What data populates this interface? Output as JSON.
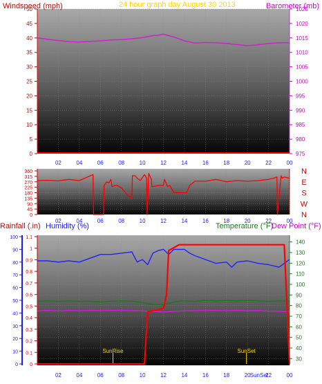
{
  "chart_data": [
    {
      "type": "line",
      "panel": "windspeed-barometer",
      "title": "24 hour graph day   August 30 2013",
      "left_axis_label": "Windspeed (mph)",
      "right_axis_label": "Barometer (mb)",
      "x_ticks": [
        "02",
        "04",
        "06",
        "08",
        "10",
        "12",
        "14",
        "16",
        "18",
        "20",
        "22",
        "00"
      ],
      "left_ticks": [
        "0",
        "5",
        "10",
        "15",
        "20",
        "25",
        "30",
        "35",
        "40",
        "45",
        "50"
      ],
      "right_ticks": [
        "975",
        "980",
        "985",
        "990",
        "995",
        "1000",
        "1005",
        "1010",
        "1015",
        "1020",
        "1025"
      ],
      "xlim": [
        0,
        24
      ],
      "left_ylim": [
        0,
        50
      ],
      "right_ylim": [
        975,
        1025
      ],
      "colors": {
        "windspeed": "#ff0000",
        "barometer": "#d020d0",
        "title": "#ffd400"
      },
      "series": [
        {
          "axis": "left",
          "x": [
            0,
            24
          ],
          "values": [
            0.3,
            0.3
          ]
        },
        {
          "axis": "right",
          "x": [
            0,
            1,
            2,
            3,
            4,
            5,
            6,
            7,
            8,
            9,
            10,
            11,
            11.5,
            12,
            12.5,
            13,
            14,
            15,
            16,
            17,
            18,
            19,
            20,
            21,
            22,
            23,
            24
          ],
          "values": [
            1015.0,
            1014.5,
            1014.1,
            1013.7,
            1013.6,
            1013.8,
            1014.0,
            1014.3,
            1014.4,
            1014.7,
            1015.1,
            1015.8,
            1015.9,
            1016.3,
            1015.8,
            1015.3,
            1014.0,
            1013.2,
            1013.4,
            1013.3,
            1013.1,
            1012.7,
            1012.3,
            1012.6,
            1013.1,
            1013.3,
            1013.3
          ]
        }
      ]
    },
    {
      "type": "line",
      "panel": "wind-direction",
      "right_axis_label": "N W S E N",
      "x_ticks": [
        "02",
        "04",
        "06",
        "08",
        "10",
        "12",
        "14",
        "16",
        "18",
        "20",
        "22",
        "00"
      ],
      "left_ticks": [
        "0",
        "45",
        "90",
        "135",
        "180",
        "225",
        "270",
        "315",
        "360"
      ],
      "compass": [
        "N",
        "W",
        "S",
        "E",
        "N"
      ],
      "xlim": [
        0,
        24
      ],
      "ylim": [
        0,
        360
      ],
      "colors": {
        "direction": "#ff0000",
        "compass": "#cc0000"
      },
      "series": [
        {
          "x": [
            0,
            1,
            2,
            3,
            4,
            5.3,
            5.35,
            6.3,
            6.35,
            6.6,
            6.8,
            7.0,
            7.1,
            7.4,
            7.6,
            8.0,
            8.7,
            8.85,
            9.0,
            9.05,
            9.3,
            9.5,
            9.8,
            10.2,
            10.4,
            10.45,
            10.6,
            10.85,
            10.9,
            11.6,
            12.0,
            12.1,
            12.4,
            12.6,
            13.0,
            14.2,
            14.5,
            15.0,
            16,
            17,
            18,
            19,
            20,
            21,
            22,
            22.5,
            22.8,
            22.85,
            23.2,
            23.3,
            23.5,
            24
          ],
          "values": [
            280,
            282,
            278,
            290,
            280,
            330,
            0,
            0,
            240,
            270,
            260,
            290,
            230,
            240,
            240,
            220,
            150,
            145,
            150,
            320,
            320,
            300,
            280,
            330,
            300,
            0,
            340,
            290,
            230,
            240,
            240,
            290,
            230,
            240,
            180,
            180,
            240,
            275,
            275,
            290,
            270,
            280,
            275,
            280,
            290,
            300,
            310,
            0,
            320,
            300,
            310,
            300
          ]
        }
      ]
    },
    {
      "type": "line",
      "panel": "rain-humidity-temperature",
      "rain_axis_label": "Rainfall (.in)",
      "humidity_axis_label": "Humidity (%)",
      "temperature_axis_label": "Temperature (°F)",
      "dewpoint_axis_label": "Dew Point (°F)",
      "x_ticks": [
        "02",
        "04",
        "06",
        "08",
        "10",
        "12",
        "14",
        "16",
        "18",
        "20",
        "22",
        "00"
      ],
      "humidity_ticks": [
        "0",
        "10",
        "20",
        "30",
        "40",
        "50",
        "60",
        "70",
        "80",
        "90",
        "100"
      ],
      "rain_ticks": [
        "0",
        "0.1",
        "0.2",
        "0.3",
        "0.4",
        "0.5",
        "0.6",
        "0.7",
        "0.8",
        "0.9",
        "1",
        "1.1"
      ],
      "temperature_ticks": [
        "30",
        "40",
        "50",
        "60",
        "70",
        "80",
        "90",
        "100",
        "110",
        "120",
        "130",
        "140"
      ],
      "xlim": [
        0,
        24
      ],
      "humidity_ylim": [
        0,
        100
      ],
      "rain_ylim": [
        0,
        1.1
      ],
      "temperature_ylim": [
        25,
        145
      ],
      "annotations": [
        {
          "text": "SunRise",
          "x": 7.2
        },
        {
          "text": "SunSet",
          "x": 19.9
        },
        {
          "text": "SunSet",
          "x": 21.1
        }
      ],
      "colors": {
        "rainfall": "#ff0000",
        "humidity": "#2020ff",
        "temperature": "#1a7a1a",
        "dew_point": "#d020d0",
        "rain_label": "#cc0000",
        "humidity_label": "#1a1aff",
        "temperature_label": "#1a7a1a",
        "dew_label": "#cc00cc",
        "sun_label": "#ffd400"
      },
      "series": [
        {
          "key": "rainfall",
          "axis": "rain",
          "x": [
            0,
            9,
            10.2,
            10.3,
            10.5,
            11.5,
            12.0,
            12.3,
            12.5,
            13.5,
            14.5,
            15.5,
            16.5,
            17.5,
            19.5,
            21.5,
            23.5,
            24
          ],
          "values": [
            0,
            0,
            0,
            0.15,
            0.45,
            0.47,
            0.48,
            0.6,
            0.98,
            1.03,
            1.03,
            1.03,
            1.03,
            1.03,
            1.03,
            1.03,
            1.03,
            0
          ]
        },
        {
          "key": "humidity",
          "axis": "humidity",
          "x": [
            0,
            1,
            2,
            3,
            4,
            5,
            6,
            7,
            8,
            9,
            9.5,
            10,
            10.5,
            11,
            11.5,
            12,
            12.5,
            13,
            14,
            14.5,
            15,
            16,
            17,
            18,
            18.5,
            19,
            20,
            21,
            22,
            23,
            24
          ],
          "values": [
            81,
            81,
            80,
            81,
            80,
            83,
            86,
            86,
            87,
            88,
            80,
            82,
            78,
            87,
            89,
            90,
            86,
            90,
            90,
            87,
            85,
            82,
            79,
            80,
            76,
            80,
            81,
            79,
            78,
            76,
            82
          ]
        },
        {
          "key": "temperature",
          "axis": "temperature",
          "x": [
            0,
            1,
            2,
            3,
            4,
            5,
            6,
            7,
            8,
            9,
            10,
            11,
            12,
            13,
            14,
            15,
            16,
            17,
            18,
            19,
            20,
            21,
            22,
            23,
            24
          ],
          "values": [
            84,
            84.5,
            84,
            84.5,
            84,
            84,
            83.5,
            84,
            84.5,
            84,
            83,
            81,
            81,
            83.5,
            84.5,
            84,
            85,
            84.5,
            85,
            84.5,
            85,
            84.5,
            84,
            84.5,
            84
          ]
        },
        {
          "key": "dew_point",
          "axis": "temperature",
          "x": [
            0,
            1,
            2,
            3,
            4,
            5,
            6,
            7,
            8,
            9,
            10,
            11,
            12,
            13,
            14,
            15,
            16,
            17,
            18,
            19,
            20,
            21,
            22,
            23,
            24
          ],
          "values": [
            75,
            75.5,
            75,
            75.5,
            75.3,
            75.5,
            75.4,
            75.5,
            75.5,
            75.3,
            75,
            74.5,
            74,
            74.5,
            75,
            75.3,
            75.5,
            75.5,
            75.3,
            75.5,
            75.2,
            75.4,
            74.8,
            74.5,
            74.3
          ]
        }
      ]
    }
  ]
}
